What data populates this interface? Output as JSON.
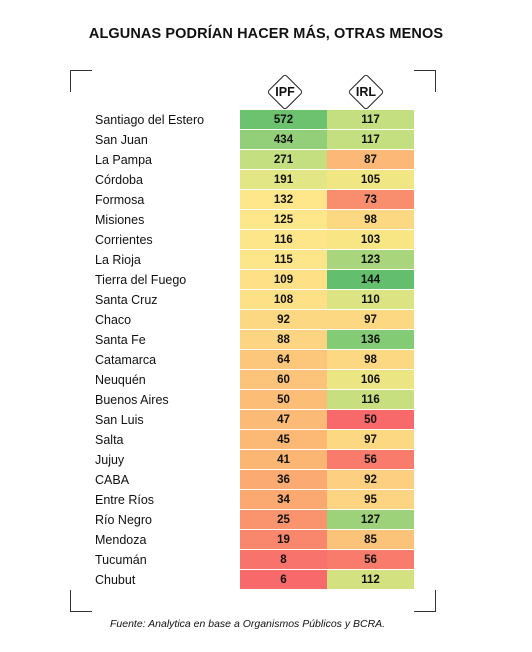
{
  "title": "ALGUNAS PODRÍAN HACER MÁS, OTRAS MENOS",
  "source": "Fuente: Analytica en base a Organismos Públicos y BCRA.",
  "chart_data": {
    "type": "table",
    "title": "ALGUNAS PODRÍAN HACER MÁS, OTRAS MENOS",
    "columns": [
      "IPF",
      "IRL"
    ],
    "rows": [
      {
        "name": "Santiago del Estero",
        "ipf": 572,
        "irl": 117,
        "ipf_color": "#6cc26f",
        "irl_color": "#c3df7f"
      },
      {
        "name": "San Juan",
        "ipf": 434,
        "irl": 117,
        "ipf_color": "#93cf79",
        "irl_color": "#c3df7f"
      },
      {
        "name": "La Pampa",
        "ipf": 271,
        "irl": 87,
        "ipf_color": "#c3df7f",
        "irl_color": "#fbb876"
      },
      {
        "name": "Córdoba",
        "ipf": 191,
        "irl": 105,
        "ipf_color": "#e3e685",
        "irl_color": "#f1e684"
      },
      {
        "name": "Formosa",
        "ipf": 132,
        "irl": 73,
        "ipf_color": "#fde78a",
        "irl_color": "#f88e6e"
      },
      {
        "name": "Misiones",
        "ipf": 125,
        "irl": 98,
        "ipf_color": "#fde78a",
        "irl_color": "#fdd882"
      },
      {
        "name": "Corrientes",
        "ipf": 116,
        "irl": 103,
        "ipf_color": "#fde589",
        "irl_color": "#f8e584"
      },
      {
        "name": "La Rioja",
        "ipf": 115,
        "irl": 123,
        "ipf_color": "#fde589",
        "irl_color": "#a9d67c"
      },
      {
        "name": "Tierra del Fuego",
        "ipf": 109,
        "irl": 144,
        "ipf_color": "#fee187",
        "irl_color": "#63be6d"
      },
      {
        "name": "Santa Cruz",
        "ipf": 108,
        "irl": 110,
        "ipf_color": "#fee187",
        "irl_color": "#dbe382"
      },
      {
        "name": "Chaco",
        "ipf": 92,
        "irl": 97,
        "ipf_color": "#fdd883",
        "irl_color": "#fdd882"
      },
      {
        "name": "Santa Fe",
        "ipf": 88,
        "irl": 136,
        "ipf_color": "#fdd582",
        "irl_color": "#84cb76"
      },
      {
        "name": "Catamarca",
        "ipf": 64,
        "irl": 98,
        "ipf_color": "#fcc77b",
        "irl_color": "#fdd882"
      },
      {
        "name": "Neuquén",
        "ipf": 60,
        "irl": 106,
        "ipf_color": "#fcc47a",
        "irl_color": "#ebe583"
      },
      {
        "name": "Buenos Aires",
        "ipf": 50,
        "irl": 116,
        "ipf_color": "#fcbd77",
        "irl_color": "#c8df80"
      },
      {
        "name": "San Luis",
        "ipf": 47,
        "irl": 50,
        "ipf_color": "#fbbb76",
        "irl_color": "#f8696b"
      },
      {
        "name": "Salta",
        "ipf": 45,
        "irl": 97,
        "ipf_color": "#fbb975",
        "irl_color": "#fdd882"
      },
      {
        "name": "Jujuy",
        "ipf": 41,
        "irl": 56,
        "ipf_color": "#fbb674",
        "irl_color": "#f87b6c"
      },
      {
        "name": "CABA",
        "ipf": 36,
        "irl": 92,
        "ipf_color": "#fbab72",
        "irl_color": "#fdd081"
      },
      {
        "name": "Entre Ríos",
        "ipf": 34,
        "irl": 95,
        "ipf_color": "#fba871",
        "irl_color": "#fdd582"
      },
      {
        "name": "Río Negro",
        "ipf": 25,
        "irl": 127,
        "ipf_color": "#f9946e",
        "irl_color": "#9ed27a"
      },
      {
        "name": "Mendoza",
        "ipf": 19,
        "irl": 85,
        "ipf_color": "#f9876d",
        "irl_color": "#fbc27a"
      },
      {
        "name": "Tucumán",
        "ipf": 8,
        "irl": 56,
        "ipf_color": "#f8736b",
        "irl_color": "#f87b6c"
      },
      {
        "name": "Chubut",
        "ipf": 6,
        "irl": 112,
        "ipf_color": "#f8696b",
        "irl_color": "#d4e181"
      }
    ]
  }
}
